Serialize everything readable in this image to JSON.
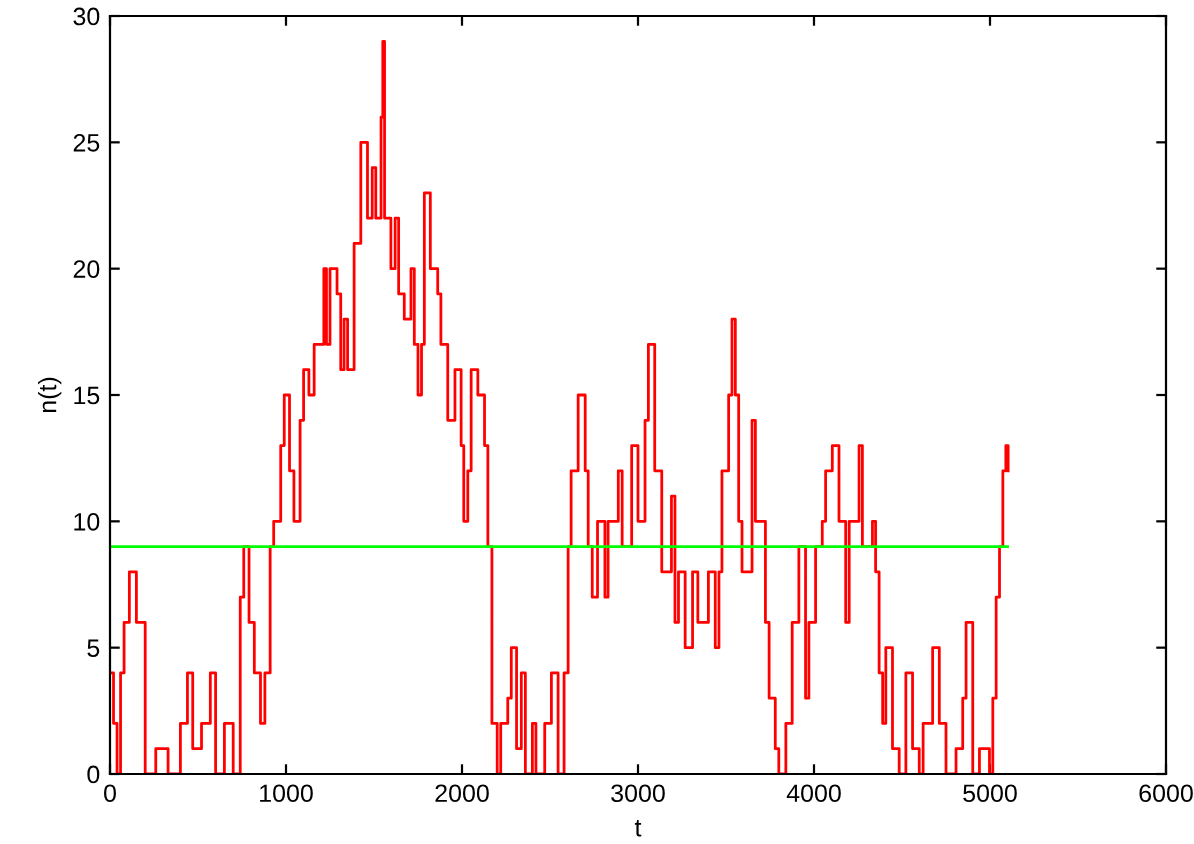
{
  "chart_data": {
    "type": "step",
    "xlabel": "t",
    "ylabel": "n(t)",
    "xlim": [
      0,
      6000
    ],
    "xticks": [
      0,
      1000,
      2000,
      3000,
      4000,
      5000,
      6000
    ],
    "ylim": [
      0,
      30
    ],
    "yticks": [
      0,
      5,
      10,
      15,
      20,
      25,
      30
    ],
    "grid": false,
    "legend": false,
    "series": [
      {
        "color": "#ff0000",
        "x": [
          0,
          20,
          40,
          60,
          80,
          110,
          150,
          200,
          260,
          330,
          400,
          440,
          470,
          520,
          570,
          600,
          650,
          700,
          740,
          760,
          790,
          820,
          855,
          880,
          910,
          930,
          970,
          990,
          1020,
          1045,
          1080,
          1100,
          1130,
          1160,
          1215,
          1230,
          1250,
          1290,
          1311,
          1330,
          1350,
          1387,
          1425,
          1463,
          1490,
          1510,
          1540,
          1550,
          1560,
          1596,
          1620,
          1640,
          1672,
          1710,
          1729,
          1750,
          1770,
          1786,
          1820,
          1862,
          1880,
          1919,
          1960,
          1995,
          2010,
          2033,
          2052,
          2090,
          2128,
          2147,
          2170,
          2200,
          2220,
          2260,
          2280,
          2310,
          2337,
          2360,
          2400,
          2420,
          2470,
          2508,
          2546,
          2580,
          2603,
          2620,
          2660,
          2700,
          2717,
          2740,
          2770,
          2812,
          2830,
          2888,
          2910,
          2964,
          3000,
          3040,
          3059,
          3095,
          3135,
          3190,
          3210,
          3230,
          3268,
          3310,
          3340,
          3382,
          3400,
          3439,
          3460,
          3477,
          3515,
          3534,
          3553,
          3572,
          3591,
          3648,
          3667,
          3700,
          3724,
          3745,
          3780,
          3800,
          3840,
          3876,
          3914,
          3952,
          3971,
          4009,
          4047,
          4066,
          4104,
          4142,
          4180,
          4200,
          4256,
          4275,
          4332,
          4350,
          4370,
          4390,
          4408,
          4446,
          4484,
          4522,
          4560,
          4598,
          4620,
          4674,
          4712,
          4750,
          4807,
          4845,
          4864,
          4902,
          4940,
          4997,
          5016,
          5035,
          5054,
          5073,
          5090,
          5103
        ],
        "values": [
          4,
          2,
          0,
          4,
          6,
          8,
          6,
          0,
          1,
          0,
          2,
          4,
          1,
          2,
          4,
          0,
          2,
          0,
          7,
          9,
          6,
          4,
          2,
          4,
          9,
          10,
          13,
          15,
          12,
          10,
          14,
          16,
          15,
          17,
          20,
          17,
          20,
          19,
          16,
          18,
          16,
          21,
          25,
          22,
          24,
          22,
          26,
          29,
          22,
          20,
          22,
          19,
          18,
          20,
          17,
          15,
          17,
          23,
          20,
          19,
          17,
          14,
          16,
          13,
          10,
          12,
          16,
          15,
          13,
          9,
          2,
          0,
          2,
          3,
          5,
          1,
          4,
          0,
          2,
          0,
          2,
          4,
          0,
          4,
          9,
          12,
          15,
          12,
          9,
          7,
          10,
          7,
          10,
          12,
          9,
          13,
          10,
          14,
          17,
          12,
          8,
          11,
          6,
          8,
          5,
          8,
          6,
          6,
          8,
          5,
          8,
          12,
          15,
          18,
          15,
          10,
          8,
          14,
          10,
          10,
          6,
          3,
          1,
          0,
          2,
          6,
          9,
          3,
          6,
          9,
          10,
          12,
          13,
          10,
          6,
          10,
          13,
          9,
          10,
          8,
          4,
          2,
          5,
          1,
          0,
          4,
          1,
          0,
          2,
          5,
          2,
          0,
          1,
          3,
          6,
          0,
          1,
          0,
          3,
          7,
          9,
          12,
          13,
          12
        ]
      },
      {
        "type": "line",
        "color": "#00ff00",
        "x": [
          0,
          5100
        ],
        "values": [
          9,
          9
        ]
      }
    ]
  }
}
